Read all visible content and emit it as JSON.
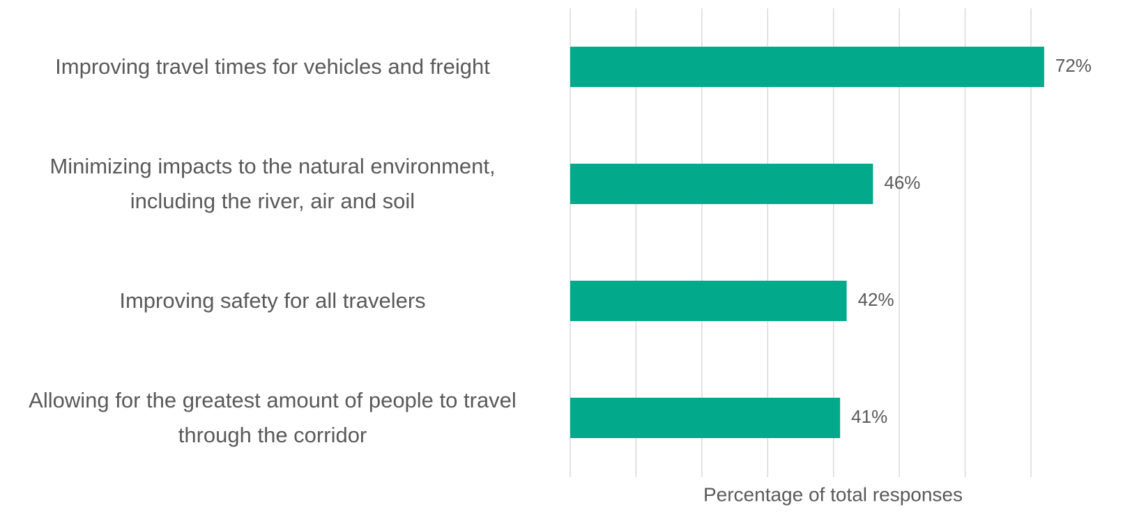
{
  "chart_data": {
    "type": "hbar",
    "categories": [
      "Improving travel times for vehicles and freight",
      "Minimizing impacts to the natural environment, including the river, air and soil",
      "Improving safety for all travelers",
      "Allowing for the greatest amount of people to travel through the corridor"
    ],
    "values": [
      72,
      46,
      42,
      41
    ],
    "value_labels": [
      "72%",
      "46%",
      "42%",
      "41%"
    ],
    "color": "#02aa8b",
    "xlabel": "Percentage of total responses",
    "xlim": [
      0,
      80
    ],
    "xticks": [
      0,
      10,
      20,
      30,
      40,
      50,
      60,
      70
    ],
    "grid": true
  }
}
